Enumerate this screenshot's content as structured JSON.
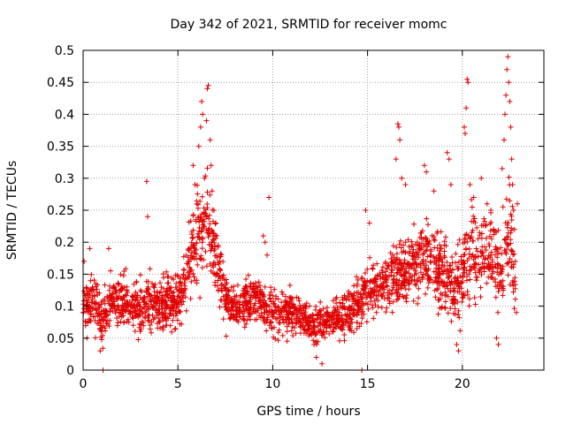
{
  "chart_data": {
    "type": "scatter",
    "title": "Day 342 of 2021, SRMTID for receiver momc",
    "xlabel": "GPS time / hours",
    "ylabel": "SRMTID / TECUs",
    "xlim": [
      0,
      24.3
    ],
    "ylim": [
      0,
      0.5
    ],
    "x_ticks": [
      0,
      5,
      10,
      15,
      20
    ],
    "y_ticks": [
      0,
      0.05,
      0.1,
      0.15,
      0.2,
      0.25,
      0.3,
      0.35,
      0.4,
      0.45,
      0.5
    ],
    "x_tick_labels": [
      "0",
      "5",
      "10",
      "15",
      "20"
    ],
    "y_tick_labels": [
      "0",
      "0.05",
      "0.1",
      "0.15",
      "0.2",
      "0.25",
      "0.3",
      "0.35",
      "0.4",
      "0.45",
      "0.5"
    ],
    "grid": true,
    "marker": "+",
    "color": "#e00000",
    "series": [
      {
        "name": "SRMTID",
        "trend": [
          [
            0.0,
            0.1,
            0.035
          ],
          [
            0.5,
            0.11,
            0.035
          ],
          [
            1.0,
            0.08,
            0.03
          ],
          [
            1.5,
            0.11,
            0.035
          ],
          [
            2.0,
            0.11,
            0.035
          ],
          [
            3.0,
            0.1,
            0.035
          ],
          [
            4.0,
            0.1,
            0.035
          ],
          [
            5.0,
            0.11,
            0.04
          ],
          [
            5.5,
            0.16,
            0.05
          ],
          [
            6.0,
            0.2,
            0.06
          ],
          [
            6.5,
            0.23,
            0.07
          ],
          [
            7.0,
            0.18,
            0.05
          ],
          [
            7.5,
            0.11,
            0.035
          ],
          [
            8.0,
            0.1,
            0.03
          ],
          [
            9.0,
            0.11,
            0.03
          ],
          [
            10.0,
            0.09,
            0.03
          ],
          [
            11.0,
            0.09,
            0.03
          ],
          [
            12.0,
            0.07,
            0.025
          ],
          [
            13.0,
            0.08,
            0.03
          ],
          [
            14.0,
            0.09,
            0.03
          ],
          [
            15.0,
            0.12,
            0.04
          ],
          [
            16.0,
            0.14,
            0.045
          ],
          [
            17.0,
            0.16,
            0.05
          ],
          [
            18.0,
            0.18,
            0.05
          ],
          [
            19.0,
            0.15,
            0.06
          ],
          [
            19.5,
            0.13,
            0.05
          ],
          [
            20.0,
            0.14,
            0.05
          ],
          [
            20.5,
            0.2,
            0.06
          ],
          [
            21.0,
            0.17,
            0.06
          ],
          [
            21.5,
            0.19,
            0.06
          ],
          [
            22.0,
            0.15,
            0.05
          ],
          [
            22.5,
            0.22,
            0.08
          ],
          [
            22.8,
            0.14,
            0.04
          ]
        ],
        "points": [
          [
            0.05,
            0.17
          ],
          [
            0.2,
            0.05
          ],
          [
            0.35,
            0.19
          ],
          [
            0.9,
            0.03
          ],
          [
            1.05,
            0.0
          ],
          [
            1.35,
            0.19
          ],
          [
            3.35,
            0.295
          ],
          [
            3.4,
            0.24
          ],
          [
            5.8,
            0.32
          ],
          [
            5.9,
            0.29
          ],
          [
            6.0,
            0.26
          ],
          [
            6.1,
            0.35
          ],
          [
            6.2,
            0.38
          ],
          [
            6.25,
            0.42
          ],
          [
            6.3,
            0.4
          ],
          [
            6.4,
            0.3
          ],
          [
            6.5,
            0.39
          ],
          [
            6.55,
            0.44
          ],
          [
            6.6,
            0.445
          ],
          [
            6.7,
            0.36
          ],
          [
            6.75,
            0.32
          ],
          [
            6.8,
            0.28
          ],
          [
            6.9,
            0.25
          ],
          [
            7.0,
            0.23
          ],
          [
            7.05,
            0.21
          ],
          [
            7.4,
            0.08
          ],
          [
            9.5,
            0.21
          ],
          [
            9.6,
            0.2
          ],
          [
            9.7,
            0.18
          ],
          [
            9.8,
            0.27
          ],
          [
            12.3,
            0.02
          ],
          [
            12.6,
            0.01
          ],
          [
            14.7,
            0.0
          ],
          [
            14.9,
            0.25
          ],
          [
            15.1,
            0.23
          ],
          [
            16.5,
            0.33
          ],
          [
            16.6,
            0.385
          ],
          [
            16.65,
            0.38
          ],
          [
            16.7,
            0.36
          ],
          [
            16.8,
            0.3
          ],
          [
            17.0,
            0.29
          ],
          [
            18.0,
            0.32
          ],
          [
            18.1,
            0.31
          ],
          [
            18.5,
            0.28
          ],
          [
            19.2,
            0.34
          ],
          [
            19.3,
            0.33
          ],
          [
            19.4,
            0.29
          ],
          [
            19.7,
            0.04
          ],
          [
            19.8,
            0.03
          ],
          [
            20.1,
            0.38
          ],
          [
            20.15,
            0.37
          ],
          [
            20.2,
            0.41
          ],
          [
            20.25,
            0.455
          ],
          [
            20.3,
            0.45
          ],
          [
            20.4,
            0.29
          ],
          [
            20.6,
            0.27
          ],
          [
            21.0,
            0.3
          ],
          [
            21.3,
            0.26
          ],
          [
            21.5,
            0.25
          ],
          [
            21.8,
            0.05
          ],
          [
            21.9,
            0.04
          ],
          [
            22.1,
            0.315
          ],
          [
            22.2,
            0.36
          ],
          [
            22.25,
            0.4
          ],
          [
            22.3,
            0.43
          ],
          [
            22.35,
            0.47
          ],
          [
            22.4,
            0.49
          ],
          [
            22.45,
            0.45
          ],
          [
            22.5,
            0.42
          ],
          [
            22.55,
            0.38
          ],
          [
            22.6,
            0.33
          ],
          [
            22.65,
            0.29
          ],
          [
            22.7,
            0.25
          ],
          [
            22.75,
            0.22
          ],
          [
            22.8,
            0.17
          ],
          [
            22.85,
            0.09
          ],
          [
            22.9,
            0.26
          ]
        ]
      }
    ]
  }
}
